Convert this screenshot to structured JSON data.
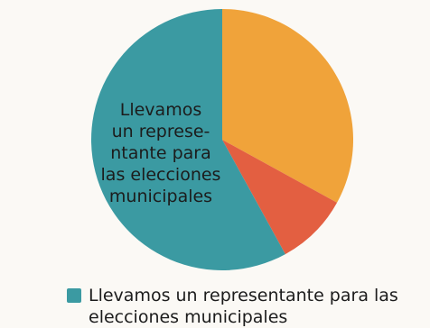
{
  "chart_data": {
    "type": "pie",
    "slices": [
      {
        "label": "Llevamos un representante para las elecciones municipales",
        "value": 58,
        "color": "#3b9aa2"
      },
      {
        "label": "",
        "value": 33,
        "color": "#f0a33a"
      },
      {
        "label": "",
        "value": 9,
        "color": "#e35f41"
      }
    ],
    "slice_label_lines": [
      "Llevamos",
      "un represe-",
      "ntante para",
      "las elecciones",
      "municipales"
    ],
    "legend": [
      {
        "text": "Llevamos un representante para las elecciones municipales",
        "color": "#3b9aa2"
      }
    ]
  }
}
